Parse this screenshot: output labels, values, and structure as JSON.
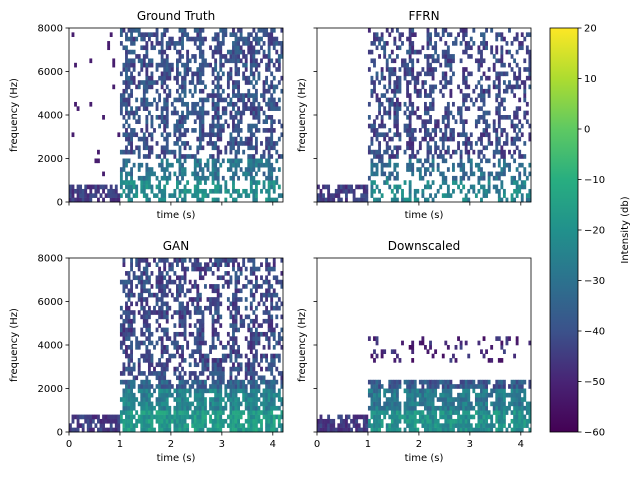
{
  "chart_data": {
    "type": "heatmap",
    "colormap": "viridis",
    "panels": [
      {
        "title": "Ground Truth",
        "xlabel": "time (s)",
        "ylabel": "frequency (Hz)",
        "xlim": [
          0,
          4.2
        ],
        "ylim": [
          0,
          8000
        ],
        "show_xticklabels": false,
        "show_yticklabels": true,
        "speech_onset_s": 0.97,
        "bands": [
          {
            "from_hz": 0,
            "to_hz": 8000,
            "intensity_db": -40,
            "cover": 0.5
          }
        ]
      },
      {
        "title": "FFRN",
        "xlabel": "time (s)",
        "ylabel": "frequency (Hz)",
        "xlim": [
          0,
          4.2
        ],
        "ylim": [
          0,
          8000
        ],
        "show_xticklabels": false,
        "show_yticklabels": false,
        "speech_onset_s": 0.97,
        "bands": [
          {
            "from_hz": 0,
            "to_hz": 8000,
            "intensity_db": -42,
            "cover": 0.4
          }
        ]
      },
      {
        "title": "GAN",
        "xlabel": "time (s)",
        "ylabel": "frequency (Hz)",
        "xlim": [
          0,
          4.2
        ],
        "ylim": [
          0,
          8000
        ],
        "show_xticklabels": true,
        "show_yticklabels": true,
        "speech_onset_s": 0.97,
        "bands": [
          {
            "from_hz": 0,
            "to_hz": 2500,
            "intensity_db": -35,
            "cover": 0.85
          },
          {
            "from_hz": 2500,
            "to_hz": 8000,
            "intensity_db": -42,
            "cover": 0.5
          }
        ]
      },
      {
        "title": "Downscaled",
        "xlabel": "time (s)",
        "ylabel": "frequency (Hz)",
        "xlim": [
          0,
          4.2
        ],
        "ylim": [
          0,
          8000
        ],
        "show_xticklabels": true,
        "show_yticklabels": false,
        "speech_onset_s": 0.97,
        "bands": [
          {
            "from_hz": 0,
            "to_hz": 2500,
            "intensity_db": -38,
            "cover": 0.85
          },
          {
            "from_hz": 3300,
            "to_hz": 4500,
            "intensity_db": -50,
            "cover": 0.15
          }
        ]
      }
    ],
    "xticks": [
      0,
      1,
      2,
      3,
      4
    ],
    "xtick_labels": [
      "0",
      "1",
      "2",
      "3",
      "4"
    ],
    "yticks": [
      0,
      2000,
      4000,
      6000,
      8000
    ],
    "ytick_labels": [
      "0",
      "2000",
      "4000",
      "6000",
      "8000"
    ],
    "colorbar": {
      "label": "Intensity (db)",
      "min": -60,
      "max": 20,
      "ticks": [
        20,
        10,
        0,
        -10,
        -20,
        -30,
        -40,
        -50,
        -60
      ],
      "tick_labels": [
        "20",
        "10",
        "0",
        "−10",
        "−20",
        "−30",
        "−40",
        "−50",
        "−60"
      ]
    }
  }
}
